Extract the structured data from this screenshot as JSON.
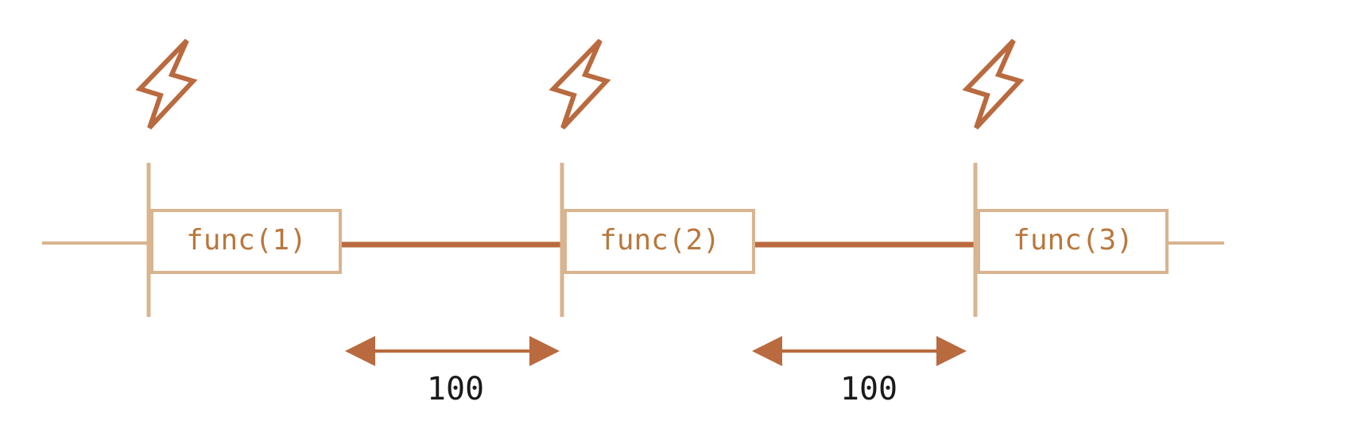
{
  "calls": [
    {
      "label": "func(1)",
      "icon": "lightning-bolt-icon"
    },
    {
      "label": "func(2)",
      "icon": "lightning-bolt-icon"
    },
    {
      "label": "func(3)",
      "icon": "lightning-bolt-icon"
    }
  ],
  "delays": [
    {
      "value": "100"
    },
    {
      "value": "100"
    }
  ],
  "colors": {
    "accent": "#b96a3f",
    "axis": "#d8b48f",
    "label": "#b9773c",
    "text": "#1a1a1a"
  }
}
